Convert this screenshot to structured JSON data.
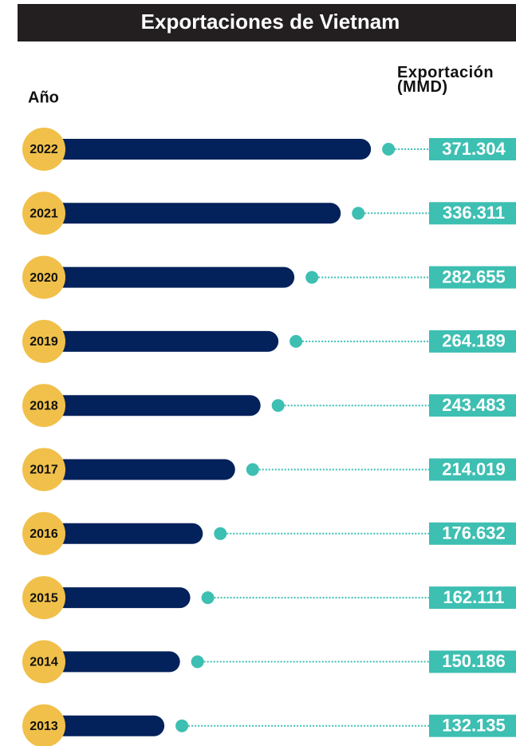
{
  "chart_data": {
    "type": "bar",
    "title": "Exportaciones de Vietnam",
    "category_header": "Año",
    "value_header": "Exportación (MMD)",
    "categories": [
      "2022",
      "2021",
      "2020",
      "2019",
      "2018",
      "2017",
      "2016",
      "2015",
      "2014",
      "2013"
    ],
    "values": [
      371.304,
      336.311,
      282.655,
      264.189,
      243.483,
      214.019,
      176.632,
      162.111,
      150.186,
      132.135
    ],
    "color": "#03215a",
    "circle_color": "#f0c04a",
    "accent_color": "#3dbfb2"
  }
}
